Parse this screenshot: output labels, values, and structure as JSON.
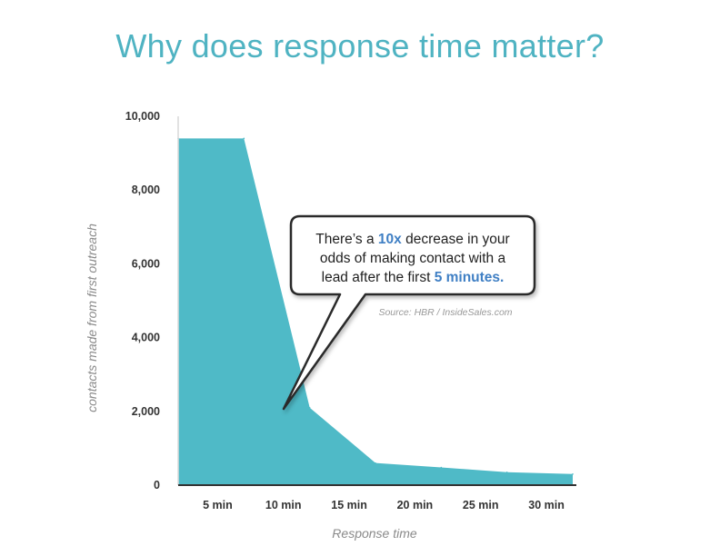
{
  "title": "Why does response time matter?",
  "chart_data": {
    "type": "area",
    "title": "Why does response time matter?",
    "xlabel": "Response time",
    "ylabel": "contacts made from first outreach",
    "categories": [
      "5 min",
      "10 min",
      "15 min",
      "20 min",
      "25 min",
      "30 min"
    ],
    "yticks": [
      "0",
      "2,000",
      "4,000",
      "6,000",
      "8,000",
      "10,000"
    ],
    "ylim": [
      0,
      10000
    ],
    "series": [
      {
        "x": [
          0,
          1,
          2,
          3,
          4,
          5,
          6
        ],
        "values": [
          9400,
          9400,
          2100,
          600,
          480,
          350,
          300
        ]
      }
    ],
    "grid": false,
    "fill_color": "#4fbac7",
    "annotation": {
      "line1_pre": "There’s a ",
      "line1_hl": "10x",
      "line1_post": " decrease in your",
      "line2": "odds of making contact with a",
      "line3_pre": "lead after the first ",
      "line3_hl": "5 minutes.",
      "source": "Source: HBR / InsideSales.com",
      "highlight_color": "#3f7fc4"
    }
  }
}
